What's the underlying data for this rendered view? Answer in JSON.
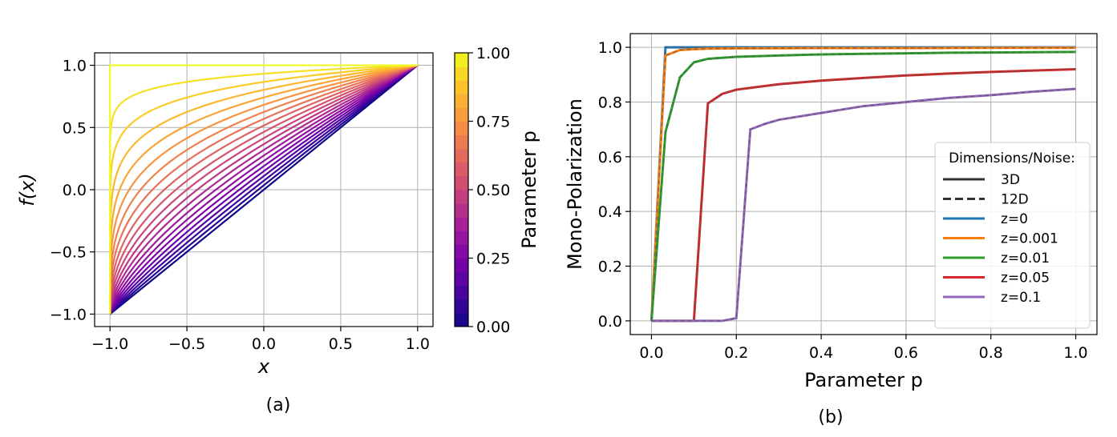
{
  "chart_data": [
    {
      "type": "line",
      "panel_label": "(a)",
      "xlabel": "x",
      "ylabel": "f(x)",
      "xlim": [
        -1.1,
        1.1
      ],
      "ylim": [
        -1.1,
        1.1
      ],
      "xticks": [
        -1.0,
        -0.5,
        0.0,
        0.5,
        1.0
      ],
      "xtick_labels": [
        "−1.0",
        "−0.5",
        "0.0",
        "0.5",
        "1.0"
      ],
      "yticks": [
        -1.0,
        -0.5,
        0.0,
        0.5,
        1.0
      ],
      "ytick_labels": [
        "−1.0",
        "−0.5",
        "0.0",
        "0.5",
        "1.0"
      ],
      "grid": true,
      "curve_family": "f(x) = ((1+x)/2)^(1-p)*2 - 1 style saturating curves from (-1,-1) to (1,1)",
      "p_values": [
        0.0,
        0.05,
        0.1,
        0.15,
        0.2,
        0.25,
        0.3,
        0.35,
        0.4,
        0.45,
        0.5,
        0.55,
        0.6,
        0.65,
        0.7,
        0.75,
        0.8,
        0.85,
        0.9,
        0.95,
        1.0
      ],
      "colormap": "plasma",
      "colorbar": {
        "label": "Parameter p",
        "ticks": [
          0.0,
          0.25,
          0.5,
          0.75,
          1.0
        ],
        "tick_labels": [
          "0.00",
          "0.25",
          "0.50",
          "0.75",
          "1.00"
        ],
        "levels": 20
      }
    },
    {
      "type": "line",
      "panel_label": "(b)",
      "xlabel": "Parameter p",
      "ylabel": "Mono-Polarization",
      "xlim": [
        -0.05,
        1.05
      ],
      "ylim": [
        -0.05,
        1.05
      ],
      "xticks": [
        0.0,
        0.2,
        0.4,
        0.6,
        0.8,
        1.0
      ],
      "xtick_labels": [
        "0.0",
        "0.2",
        "0.4",
        "0.6",
        "0.8",
        "1.0"
      ],
      "yticks": [
        0.0,
        0.2,
        0.4,
        0.6,
        0.8,
        1.0
      ],
      "ytick_labels": [
        "0.0",
        "0.2",
        "0.4",
        "0.6",
        "0.8",
        "1.0"
      ],
      "grid": true,
      "legend": {
        "title": "Dimensions/Noise:",
        "placement": "center-right",
        "style_entries": [
          {
            "label": "3D",
            "dash": "solid"
          },
          {
            "label": "12D",
            "dash": "dashed"
          }
        ]
      },
      "series": [
        {
          "name": "z=0",
          "color": "#1f77b4",
          "x": [
            0.0,
            0.033,
            0.067,
            0.1,
            0.2,
            0.4,
            0.6,
            0.8,
            1.0
          ],
          "y": [
            0.0,
            1.0,
            1.0,
            1.0,
            1.0,
            1.0,
            1.0,
            1.0,
            1.0
          ]
        },
        {
          "name": "z=0.001",
          "color": "#ff7f0e",
          "x": [
            0.0,
            0.033,
            0.067,
            0.1,
            0.133,
            0.2,
            0.4,
            0.6,
            0.8,
            1.0
          ],
          "y": [
            0.0,
            0.97,
            0.99,
            0.993,
            0.995,
            0.996,
            0.997,
            0.997,
            0.998,
            0.998
          ]
        },
        {
          "name": "z=0.01",
          "color": "#2ca02c",
          "x": [
            0.0,
            0.033,
            0.067,
            0.1,
            0.133,
            0.2,
            0.3,
            0.4,
            0.5,
            0.6,
            0.7,
            0.8,
            0.9,
            1.0
          ],
          "y": [
            0.0,
            0.69,
            0.89,
            0.945,
            0.958,
            0.965,
            0.97,
            0.974,
            0.976,
            0.978,
            0.98,
            0.981,
            0.982,
            0.983
          ]
        },
        {
          "name": "z=0.05",
          "color": "#d62728",
          "x": [
            0.0,
            0.1,
            0.133,
            0.167,
            0.2,
            0.25,
            0.3,
            0.4,
            0.5,
            0.6,
            0.7,
            0.8,
            0.9,
            1.0
          ],
          "y": [
            0.0,
            0.0,
            0.795,
            0.83,
            0.845,
            0.855,
            0.865,
            0.878,
            0.888,
            0.897,
            0.904,
            0.91,
            0.915,
            0.92
          ]
        },
        {
          "name": "z=0.1",
          "color": "#9467bd",
          "x": [
            0.0,
            0.1,
            0.167,
            0.2,
            0.233,
            0.267,
            0.3,
            0.4,
            0.5,
            0.6,
            0.7,
            0.8,
            0.9,
            1.0
          ],
          "y": [
            0.0,
            0.0,
            0.0,
            0.01,
            0.7,
            0.72,
            0.735,
            0.76,
            0.785,
            0.8,
            0.815,
            0.825,
            0.838,
            0.848
          ]
        }
      ]
    }
  ]
}
